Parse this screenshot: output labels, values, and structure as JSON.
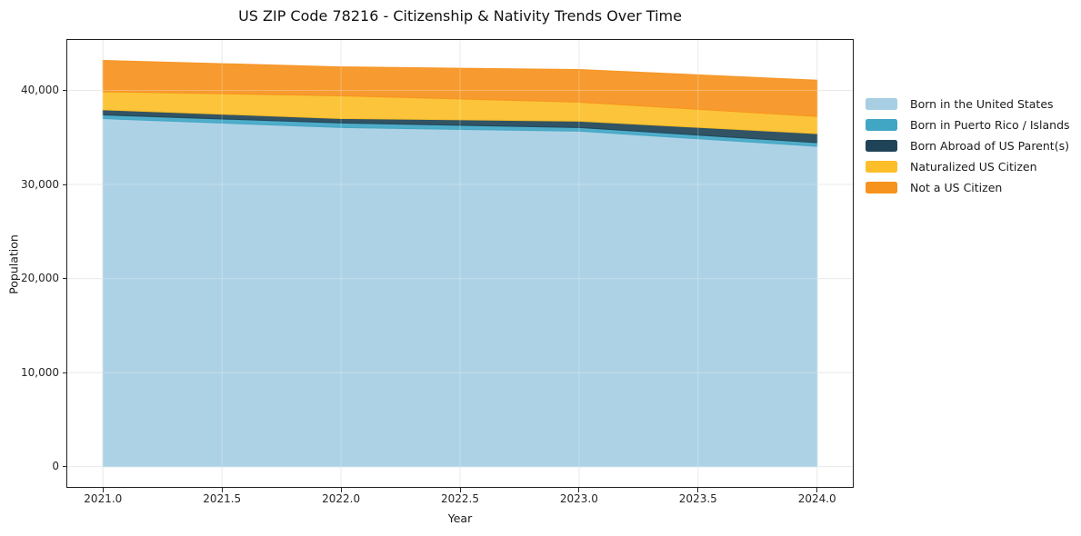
{
  "title": "US ZIP Code 78216 - Citizenship & Nativity Trends Over Time",
  "chart_data": {
    "type": "area",
    "stacked": true,
    "title": "US ZIP Code 78216 - Citizenship & Nativity Trends Over Time",
    "xlabel": "Year",
    "ylabel": "Population",
    "x": [
      2021,
      2022,
      2023,
      2024
    ],
    "series": [
      {
        "name": "Born in the United States",
        "color": "#a7cee3",
        "values": [
          37000,
          36050,
          35660,
          34050
        ]
      },
      {
        "name": "Born in Puerto Rico / Islands",
        "color": "#40a6c4",
        "values": [
          390,
          480,
          390,
          390
        ]
      },
      {
        "name": "Born Abroad of US Parent(s)",
        "color": "#1f4457",
        "values": [
          540,
          480,
          680,
          960
        ]
      },
      {
        "name": "Naturalized US Citizen",
        "color": "#fcbf29",
        "values": [
          1930,
          2410,
          2020,
          1830
        ]
      },
      {
        "name": "Not a US Citizen",
        "color": "#f6931e",
        "values": [
          3330,
          3080,
          3470,
          3860
        ]
      }
    ],
    "xlim": [
      2020.85,
      2024.15
    ],
    "ylim": [
      -2160,
      45360
    ],
    "xticks": [
      2021.0,
      2021.5,
      2022.0,
      2022.5,
      2023.0,
      2023.5,
      2024.0
    ],
    "xtick_labels": [
      "2021.0",
      "2021.5",
      "2022.0",
      "2022.5",
      "2023.0",
      "2023.5",
      "2024.0"
    ],
    "yticks": [
      0,
      10000,
      20000,
      30000,
      40000
    ],
    "ytick_labels": [
      "0",
      "10,000",
      "20,000",
      "30,000",
      "40,000"
    ],
    "grid": true,
    "grid_color": "#e2e2e2",
    "spine_color": "#1f1f1f",
    "fill_opacity": 0.92,
    "legend_position": "right"
  }
}
